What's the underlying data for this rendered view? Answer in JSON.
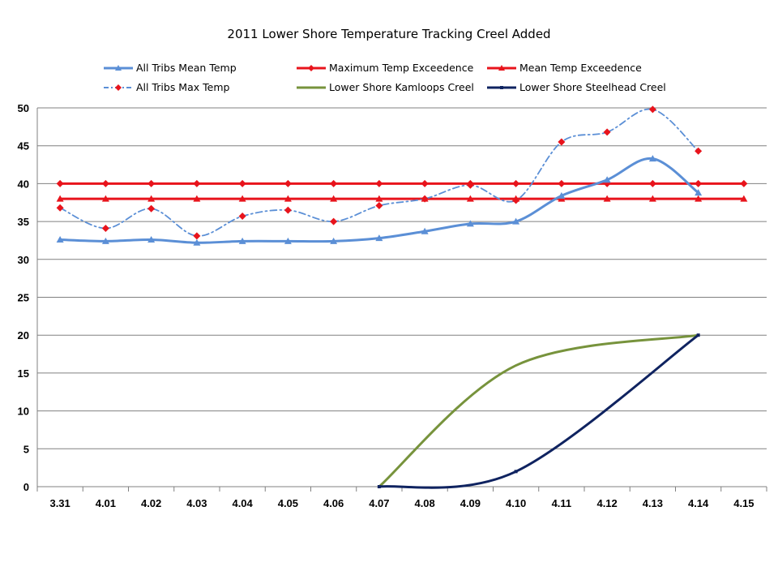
{
  "chart_data": {
    "type": "line",
    "title": "2011 Lower Shore Temperature Tracking Creel Added",
    "categories": [
      "3.31",
      "4.01",
      "4.02",
      "4.03",
      "4.04",
      "4.05",
      "4.06",
      "4.07",
      "4.08",
      "4.09",
      "4.10",
      "4.11",
      "4.12",
      "4.13",
      "4.14",
      "4.15"
    ],
    "ylim": [
      0,
      50
    ],
    "yticks": [
      0,
      5,
      10,
      15,
      20,
      25,
      30,
      35,
      40,
      45,
      50
    ],
    "grid": true,
    "legend_position": "top",
    "series": [
      {
        "name": "All Tribs Mean Temp",
        "color": "#5b8fd6",
        "style": "solid",
        "marker": "triangle",
        "values": [
          32.6,
          32.4,
          32.6,
          32.2,
          32.4,
          32.4,
          32.4,
          32.8,
          33.7,
          34.7,
          35.0,
          38.4,
          40.5,
          43.3,
          38.8,
          null
        ]
      },
      {
        "name": "All Tribs Max Temp",
        "color": "#5b8fd6",
        "style": "dashdot",
        "marker": "diamond",
        "values": [
          36.8,
          34.1,
          36.7,
          33.1,
          35.7,
          36.5,
          35.0,
          37.1,
          38.0,
          39.8,
          37.8,
          45.5,
          46.8,
          49.8,
          44.3,
          null
        ]
      },
      {
        "name": "Maximum Temp Exceedence",
        "color": "#e8141c",
        "style": "solid",
        "marker": "diamond",
        "values": [
          40,
          40,
          40,
          40,
          40,
          40,
          40,
          40,
          40,
          40,
          40,
          40,
          40,
          40,
          40,
          40
        ]
      },
      {
        "name": "Lower Shore Kamloops Creel",
        "color": "#77933c",
        "style": "solid",
        "marker": "none",
        "values": [
          null,
          null,
          null,
          null,
          null,
          null,
          null,
          0,
          null,
          null,
          16,
          null,
          null,
          null,
          20,
          null
        ]
      },
      {
        "name": "Mean Temp Exceedence",
        "color": "#e8141c",
        "style": "solid",
        "marker": "triangle",
        "values": [
          38,
          38,
          38,
          38,
          38,
          38,
          38,
          38,
          38,
          38,
          38,
          38,
          38,
          38,
          38,
          38
        ]
      },
      {
        "name": "Lower Shore Steelhead Creel",
        "color": "#0f2360",
        "style": "solid",
        "marker": "square",
        "values": [
          null,
          null,
          null,
          null,
          null,
          null,
          null,
          0,
          null,
          null,
          2,
          null,
          null,
          null,
          20,
          null
        ]
      }
    ]
  }
}
